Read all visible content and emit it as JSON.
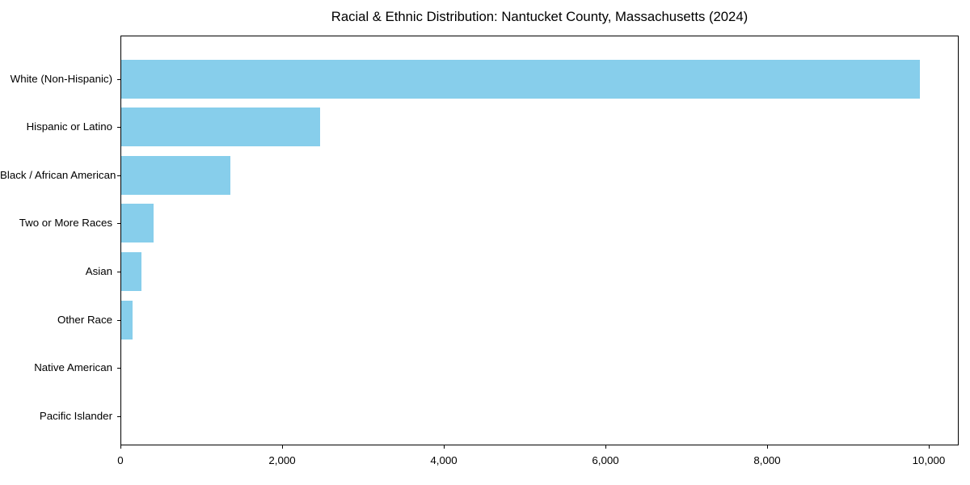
{
  "chart_data": {
    "type": "bar",
    "orientation": "horizontal",
    "title": "Racial & Ethnic Distribution: Nantucket County, Massachusetts (2024)",
    "categories": [
      "White (Non-Hispanic)",
      "Hispanic or Latino",
      "Black / African American",
      "Two or More Races",
      "Asian",
      "Other Race",
      "Native American",
      "Pacific Islander"
    ],
    "values": [
      9880,
      2460,
      1350,
      400,
      250,
      135,
      0,
      0
    ],
    "xlabel": "",
    "ylabel": "",
    "xlim": [
      0,
      10370
    ],
    "xticks": [
      0,
      2000,
      4000,
      6000,
      8000,
      10000
    ],
    "xtick_labels": [
      "0",
      "2,000",
      "4,000",
      "6,000",
      "8,000",
      "10,000"
    ],
    "bar_color": "#87CEEB",
    "axis_color": "#000000",
    "background_color": "#ffffff",
    "grid": false,
    "legend": null
  }
}
